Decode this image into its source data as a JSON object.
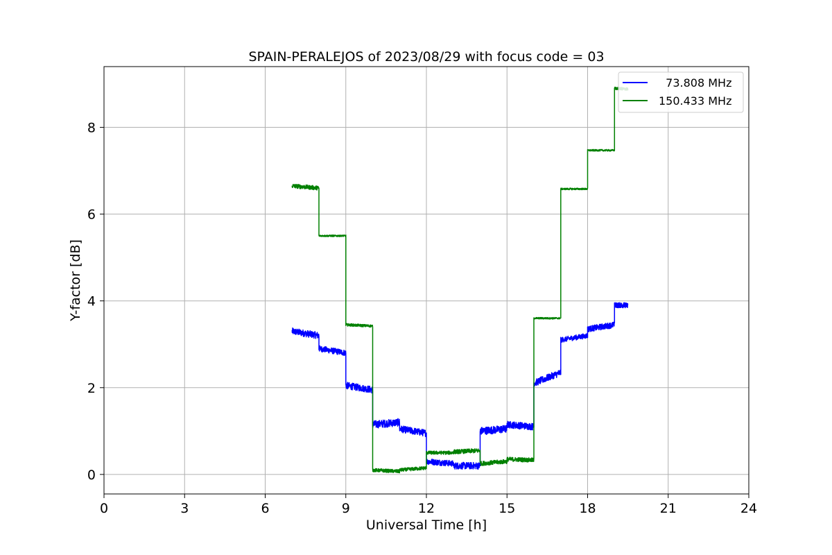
{
  "chart_data": {
    "type": "line",
    "title": "SPAIN-PERALEJOS of 2023/08/29 with focus code = 03",
    "xlabel": "Universal Time [h]",
    "ylabel": "Y-factor [dB]",
    "xlim": [
      0,
      24
    ],
    "ylim": [
      -0.45,
      9.4
    ],
    "xticks": [
      0,
      3,
      6,
      9,
      12,
      15,
      18,
      21,
      24
    ],
    "yticks": [
      0,
      2,
      4,
      6,
      8
    ],
    "xtick_labels": [
      "0",
      "3",
      "6",
      "9",
      "12",
      "15",
      "18",
      "21",
      "24"
    ],
    "ytick_labels": [
      "0",
      "2",
      "4",
      "6",
      "8"
    ],
    "grid": true,
    "legend_position": "top-right",
    "series": [
      {
        "name": "  73.808 MHz",
        "color": "#0000ff",
        "segments": [
          {
            "x0": 7.0,
            "x1": 8.0,
            "y0": 3.3,
            "y1": 3.2,
            "noise": 0.08
          },
          {
            "x0": 8.0,
            "x1": 9.0,
            "y0": 2.9,
            "y1": 2.8,
            "noise": 0.07
          },
          {
            "x0": 9.0,
            "x1": 10.0,
            "y0": 2.05,
            "y1": 1.95,
            "noise": 0.08
          },
          {
            "x0": 10.0,
            "x1": 11.0,
            "y0": 1.15,
            "y1": 1.2,
            "noise": 0.09
          },
          {
            "x0": 11.0,
            "x1": 12.0,
            "y0": 1.05,
            "y1": 0.95,
            "noise": 0.08
          },
          {
            "x0": 12.0,
            "x1": 13.0,
            "y0": 0.3,
            "y1": 0.25,
            "noise": 0.07
          },
          {
            "x0": 13.0,
            "x1": 14.0,
            "y0": 0.2,
            "y1": 0.2,
            "noise": 0.08
          },
          {
            "x0": 14.0,
            "x1": 15.0,
            "y0": 1.0,
            "y1": 1.05,
            "noise": 0.09
          },
          {
            "x0": 15.0,
            "x1": 16.0,
            "y0": 1.15,
            "y1": 1.1,
            "noise": 0.08
          },
          {
            "x0": 16.0,
            "x1": 17.0,
            "y0": 2.1,
            "y1": 2.35,
            "noise": 0.08
          },
          {
            "x0": 17.0,
            "x1": 18.0,
            "y0": 3.1,
            "y1": 3.2,
            "noise": 0.06
          },
          {
            "x0": 18.0,
            "x1": 19.0,
            "y0": 3.35,
            "y1": 3.45,
            "noise": 0.07
          },
          {
            "x0": 19.0,
            "x1": 19.5,
            "y0": 3.9,
            "y1": 3.9,
            "noise": 0.06
          }
        ]
      },
      {
        "name": "150.433 MHz",
        "color": "#008000",
        "segments": [
          {
            "x0": 7.0,
            "x1": 8.0,
            "y0": 6.65,
            "y1": 6.6,
            "noise": 0.05
          },
          {
            "x0": 8.0,
            "x1": 9.0,
            "y0": 5.5,
            "y1": 5.5,
            "noise": 0.02
          },
          {
            "x0": 9.0,
            "x1": 10.0,
            "y0": 3.45,
            "y1": 3.42,
            "noise": 0.03
          },
          {
            "x0": 10.0,
            "x1": 11.0,
            "y0": 0.1,
            "y1": 0.07,
            "noise": 0.04
          },
          {
            "x0": 11.0,
            "x1": 12.0,
            "y0": 0.1,
            "y1": 0.15,
            "noise": 0.04
          },
          {
            "x0": 12.0,
            "x1": 13.0,
            "y0": 0.5,
            "y1": 0.5,
            "noise": 0.04
          },
          {
            "x0": 13.0,
            "x1": 14.0,
            "y0": 0.52,
            "y1": 0.55,
            "noise": 0.05
          },
          {
            "x0": 14.0,
            "x1": 15.0,
            "y0": 0.25,
            "y1": 0.3,
            "noise": 0.05
          },
          {
            "x0": 15.0,
            "x1": 16.0,
            "y0": 0.35,
            "y1": 0.33,
            "noise": 0.05
          },
          {
            "x0": 16.0,
            "x1": 17.0,
            "y0": 3.6,
            "y1": 3.6,
            "noise": 0.02
          },
          {
            "x0": 17.0,
            "x1": 18.0,
            "y0": 6.58,
            "y1": 6.58,
            "noise": 0.02
          },
          {
            "x0": 18.0,
            "x1": 19.0,
            "y0": 7.47,
            "y1": 7.47,
            "noise": 0.02
          },
          {
            "x0": 19.0,
            "x1": 19.5,
            "y0": 8.9,
            "y1": 8.88,
            "noise": 0.03
          }
        ]
      }
    ]
  }
}
